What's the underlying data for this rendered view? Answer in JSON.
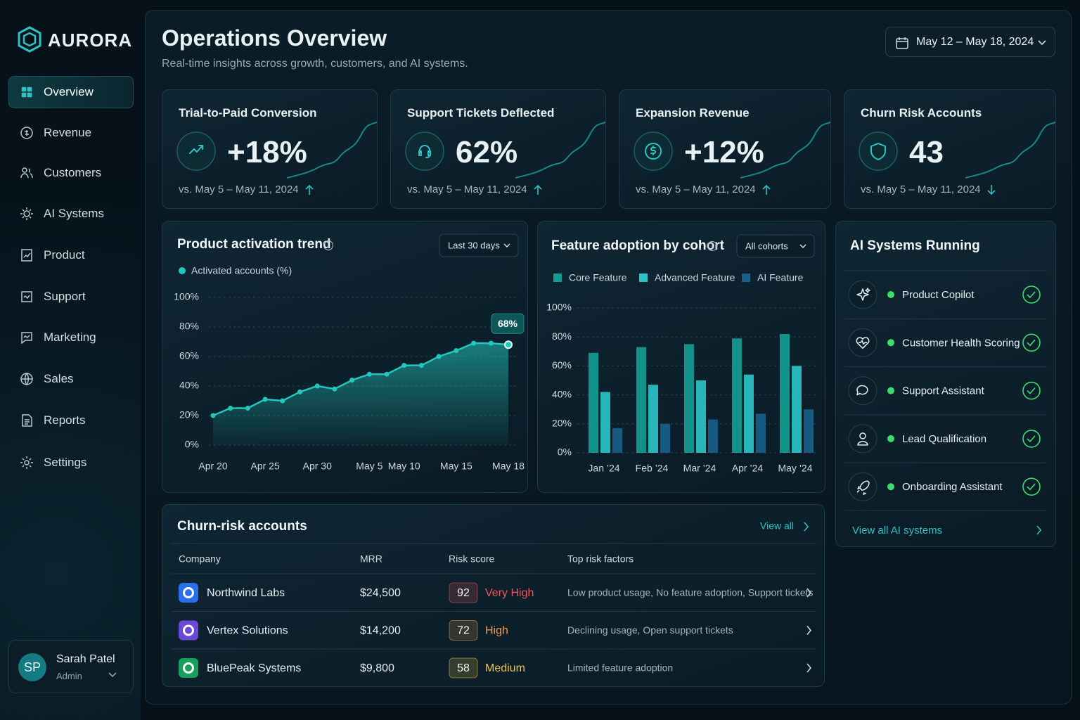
{
  "brand": "AURORA",
  "nav": [
    {
      "label": "Overview",
      "active": true
    },
    {
      "label": "Revenue"
    },
    {
      "label": "Customers"
    },
    {
      "label": "AI Systems"
    },
    {
      "label": "Product"
    },
    {
      "label": "Support"
    },
    {
      "label": "Marketing"
    },
    {
      "label": "Sales"
    },
    {
      "label": "Reports"
    },
    {
      "label": "Settings"
    }
  ],
  "user": {
    "initials": "SP",
    "name": "Sarah Patel",
    "role": "Admin"
  },
  "header": {
    "title": "Operations Overview",
    "subtitle": "Real-time insights across growth, customers, and AI systems.",
    "date_range": "May 12 – May 18, 2024"
  },
  "kpis": [
    {
      "label": "Trial-to-Paid Conversion",
      "value": "+18%",
      "comparison": "vs. May 5 – May 11, 2024",
      "trend": "up"
    },
    {
      "label": "Support Tickets Deflected",
      "value": "62%",
      "comparison": "vs. May 5 – May 11, 2024",
      "trend": "up"
    },
    {
      "label": "Expansion Revenue",
      "value": "+12%",
      "comparison": "vs. May 5 – May 11, 2024",
      "trend": "up"
    },
    {
      "label": "Churn Risk Accounts",
      "value": "43",
      "comparison": "vs. May 5 – May 11, 2024",
      "trend": "down"
    }
  ],
  "chart_data": [
    {
      "type": "line",
      "title": "Product activation trend",
      "filter": "Last 30 days",
      "categories": [
        "Apr 20",
        null,
        null,
        "Apr 25",
        null,
        null,
        "Apr 30",
        null,
        null,
        "May 5",
        null,
        "May 10",
        null,
        null,
        "May 15",
        null,
        null,
        "May 18"
      ],
      "series": [
        {
          "name": "Activated accounts (%)",
          "color": "#22c7bd",
          "values": [
            20,
            25,
            25,
            31,
            30,
            36,
            40,
            38,
            44,
            48,
            48,
            54,
            54,
            60,
            64,
            69,
            69,
            68
          ],
          "value_labels": [
            null,
            null,
            null,
            null,
            null,
            null,
            null,
            null,
            null,
            null,
            null,
            null,
            null,
            null,
            null,
            null,
            null,
            "68%"
          ]
        }
      ],
      "ylim": [
        0,
        100
      ],
      "yticks": [
        {
          "value": 0,
          "label": "0%"
        },
        {
          "value": 20,
          "label": "20%"
        },
        {
          "value": 40,
          "label": "40%"
        },
        {
          "value": 60,
          "label": "60%"
        },
        {
          "value": 80,
          "label": "80%"
        },
        {
          "value": 100,
          "label": "100%"
        }
      ],
      "grid": true
    },
    {
      "type": "bar",
      "title": "Feature adoption by cohort",
      "filter": "All cohorts",
      "categories": [
        "Jan ’24",
        "Feb ’24",
        "Mar ’24",
        "Apr ’24",
        "May ’24"
      ],
      "series": [
        {
          "name": "Core Feature",
          "color": "#139c94",
          "values": [
            69,
            73,
            75,
            79,
            82
          ]
        },
        {
          "name": "Advanced Feature",
          "color": "#2cc3c6",
          "values": [
            42,
            47,
            50,
            54,
            60
          ]
        },
        {
          "name": "AI Feature",
          "color": "#18608a",
          "values": [
            17,
            20,
            23,
            27,
            30
          ]
        }
      ],
      "ylim": [
        0,
        100
      ],
      "yticks": [
        {
          "value": 0,
          "label": "0%"
        },
        {
          "value": 20,
          "label": "20%"
        },
        {
          "value": 40,
          "label": "40%"
        },
        {
          "value": 60,
          "label": "60%"
        },
        {
          "value": 80,
          "label": "80%"
        },
        {
          "value": 100,
          "label": "100%"
        }
      ],
      "grid": true
    }
  ],
  "ai_systems": {
    "title": "AI Systems Running",
    "items": [
      "Product Copilot",
      "Customer Health Scoring",
      "Support Assistant",
      "Lead Qualification",
      "Onboarding Assistant"
    ],
    "link": "View all AI systems"
  },
  "table": {
    "title": "Churn-risk accounts",
    "link": "View all",
    "columns": [
      "Company",
      "MRR",
      "Risk score",
      "Top risk factors"
    ],
    "rows": [
      {
        "company": "Northwind Labs",
        "mrr": "$24,500",
        "score": 92,
        "level": "Very High",
        "factors": "Low product usage, No feature adoption, Support tickets",
        "color": "#f2545b"
      },
      {
        "company": "Vertex Solutions",
        "mrr": "$14,200",
        "score": 72,
        "level": "High",
        "factors": "Declining usage, Open support tickets",
        "color": "#f59a45"
      },
      {
        "company": "BluePeak Systems",
        "mrr": "$9,800",
        "score": 58,
        "level": "Medium",
        "factors": "Limited feature adoption",
        "color": "#f2c544"
      }
    ]
  }
}
